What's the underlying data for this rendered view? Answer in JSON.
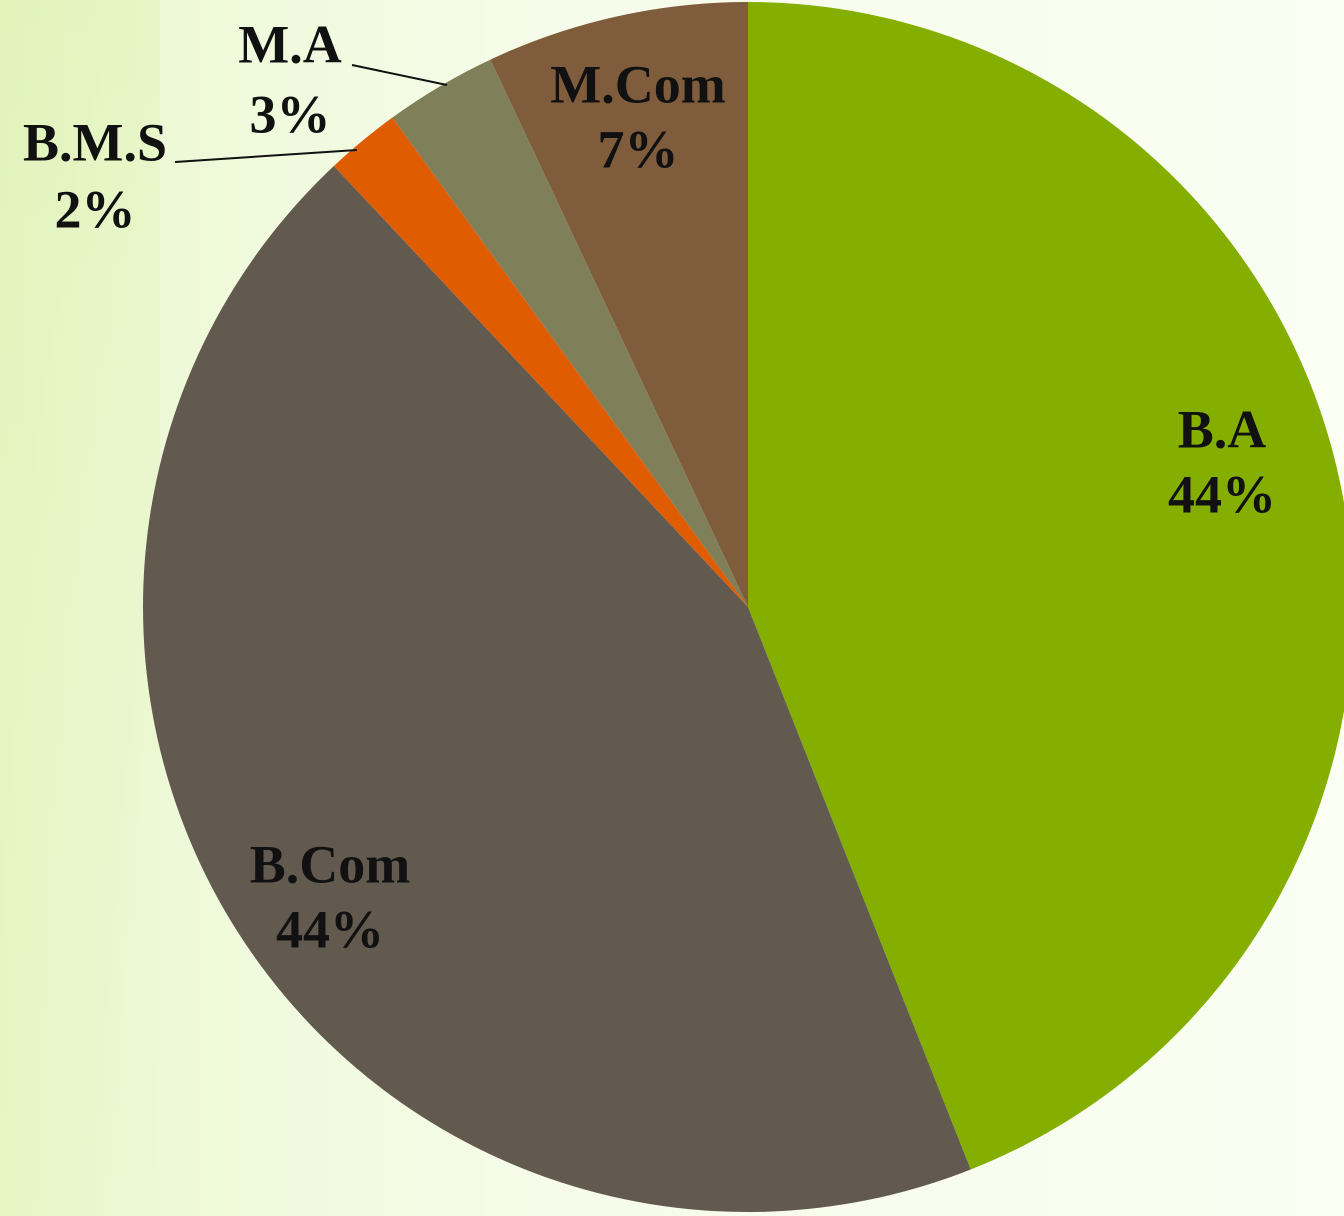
{
  "chart_data": {
    "type": "pie",
    "categories": [
      "B.A",
      "B.Com",
      "B.M.S",
      "M.A",
      "M.Com"
    ],
    "values": [
      44,
      44,
      2,
      3,
      7
    ],
    "value_labels": [
      "44%",
      "44%",
      "2%",
      "3%",
      "7%"
    ],
    "colors": [
      "#84ae00",
      "#635a4f",
      "#e05c00",
      "#7f7f5a",
      "#7f5c3c"
    ]
  }
}
